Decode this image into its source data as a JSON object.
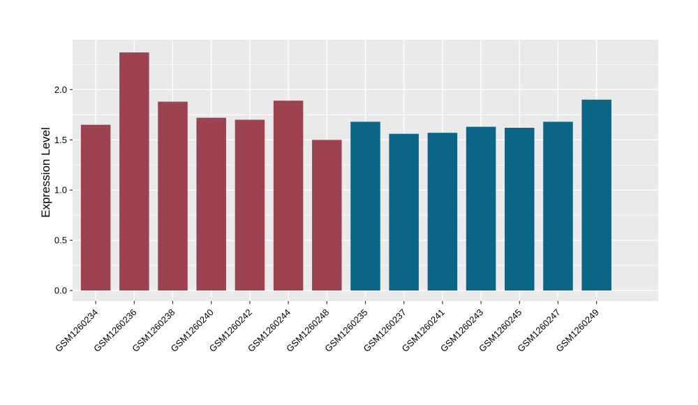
{
  "figure": {
    "background": "#ffffff",
    "panel_background": "#eaeaeb",
    "grid_color": "#ffffff",
    "tick_color": "#333333",
    "text_color": "#000000"
  },
  "chart_data": {
    "type": "bar",
    "title": "",
    "xlabel": "",
    "ylabel": "Expression Level",
    "categories": [
      "GSM1260234",
      "GSM1260236",
      "GSM1260238",
      "GSM1260240",
      "GSM1260242",
      "GSM1260244",
      "GSM1260248",
      "GSM1260235",
      "GSM1260237",
      "GSM1260241",
      "GSM1260243",
      "GSM1260245",
      "GSM1260247",
      "GSM1260249"
    ],
    "values": [
      1.65,
      2.37,
      1.88,
      1.72,
      1.7,
      1.89,
      1.5,
      1.68,
      1.56,
      1.57,
      1.63,
      1.62,
      1.68,
      1.9
    ],
    "bar_colors": [
      "#9c4251",
      "#9c4251",
      "#9c4251",
      "#9c4251",
      "#9c4251",
      "#9c4251",
      "#9c4251",
      "#0b6586",
      "#0b6586",
      "#0b6586",
      "#0b6586",
      "#0b6586",
      "#0b6586",
      "#0b6586"
    ],
    "group_colors": {
      "left_group": "#9c4251",
      "right_group": "#0b6586"
    },
    "y_ticks": [
      0.0,
      0.5,
      1.0,
      1.5,
      2.0
    ],
    "y_tick_labels": [
      "0.0",
      "0.5",
      "1.0",
      "1.5",
      "2.0"
    ],
    "ylim": [
      -0.104,
      2.496
    ],
    "grid": true,
    "legend": false,
    "x_tick_rotation_deg": 45
  }
}
